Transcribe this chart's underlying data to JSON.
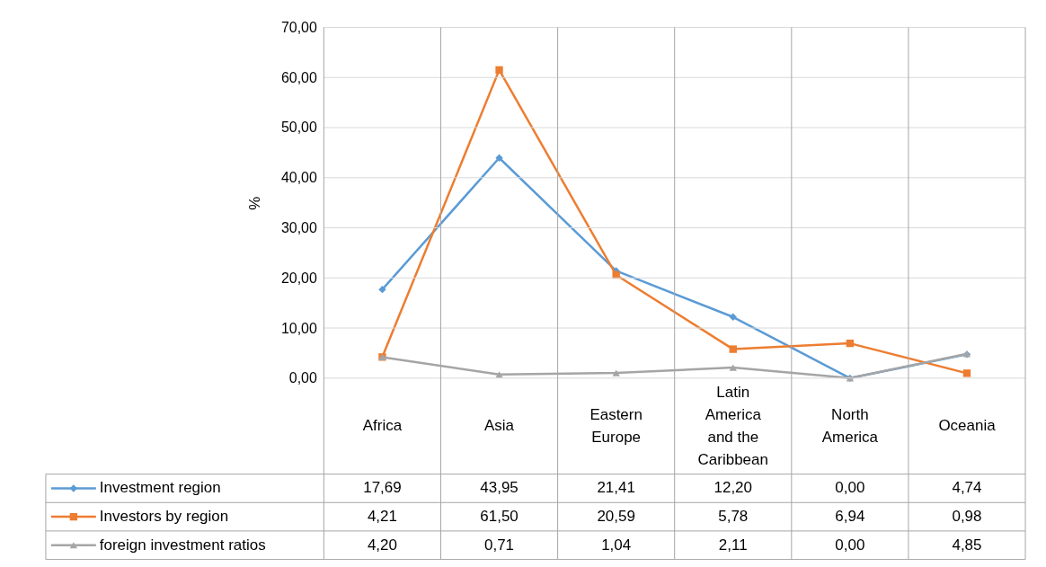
{
  "chart_data": {
    "type": "line",
    "ylabel": "%",
    "categories": [
      "Africa",
      "Asia",
      "Eastern Europe",
      "Latin America and the Caribbean",
      "North America",
      "Oceania"
    ],
    "series": [
      {
        "name": "Investment region",
        "color": "#5b9bd5",
        "marker": "diamond",
        "values": [
          17.69,
          43.95,
          21.41,
          12.2,
          0.0,
          4.74
        ],
        "value_labels": [
          "17,69",
          "43,95",
          "21,41",
          "12,20",
          "0,00",
          "4,74"
        ]
      },
      {
        "name": "Investors by region",
        "color": "#ed7d31",
        "marker": "square",
        "values": [
          4.21,
          61.5,
          20.59,
          5.78,
          6.94,
          0.98
        ],
        "value_labels": [
          "4,21",
          "61,50",
          "20,59",
          "5,78",
          "6,94",
          "0,98"
        ]
      },
      {
        "name": "foreign investment ratios",
        "color": "#a5a5a5",
        "marker": "triangle",
        "values": [
          4.2,
          0.71,
          1.04,
          2.11,
          0.0,
          4.85
        ],
        "value_labels": [
          "4,20",
          "0,71",
          "1,04",
          "2,11",
          "0,00",
          "4,85"
        ]
      }
    ],
    "ylim": [
      0,
      70
    ],
    "yticks": [
      {
        "value": 0,
        "label": "0,00"
      },
      {
        "value": 10,
        "label": "10,00"
      },
      {
        "value": 20,
        "label": "20,00"
      },
      {
        "value": 30,
        "label": "30,00"
      },
      {
        "value": 40,
        "label": "40,00"
      },
      {
        "value": 50,
        "label": "50,00"
      },
      {
        "value": 60,
        "label": "60,00"
      },
      {
        "value": 70,
        "label": "70,00"
      }
    ],
    "grid": true,
    "legend": "bottom",
    "line_style": "solid"
  }
}
